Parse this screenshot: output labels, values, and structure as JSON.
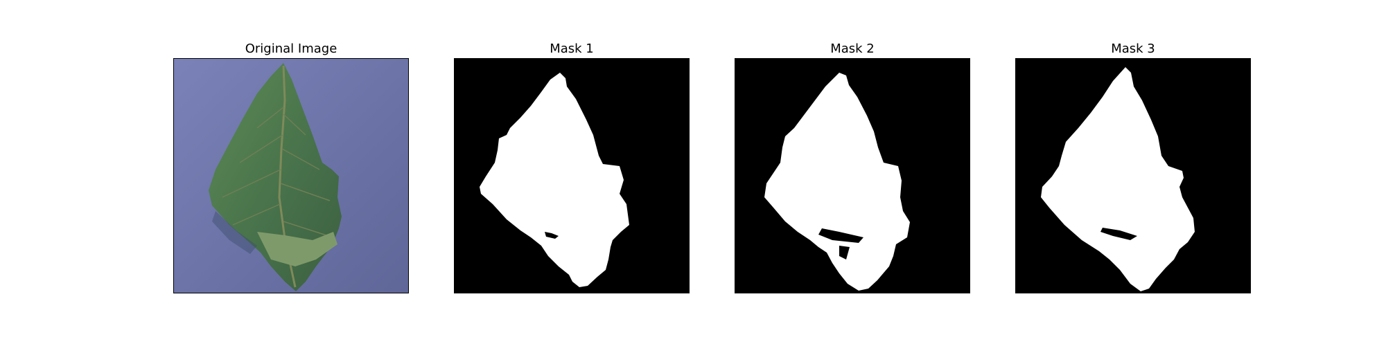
{
  "figure": {
    "panels": [
      {
        "title": "Original Image",
        "kind": "photo",
        "subject": "leaf-photo"
      },
      {
        "title": "Mask 1",
        "kind": "mask"
      },
      {
        "title": "Mask 2",
        "kind": "mask"
      },
      {
        "title": "Mask 3",
        "kind": "mask"
      }
    ]
  },
  "colors": {
    "mask_bg": "#000000",
    "mask_fg": "#ffffff",
    "photo_bg": "#6f76ad",
    "leaf": "#4f7a4d",
    "leaf_dark": "#355a38",
    "leaf_vein": "#7f8a5a"
  }
}
